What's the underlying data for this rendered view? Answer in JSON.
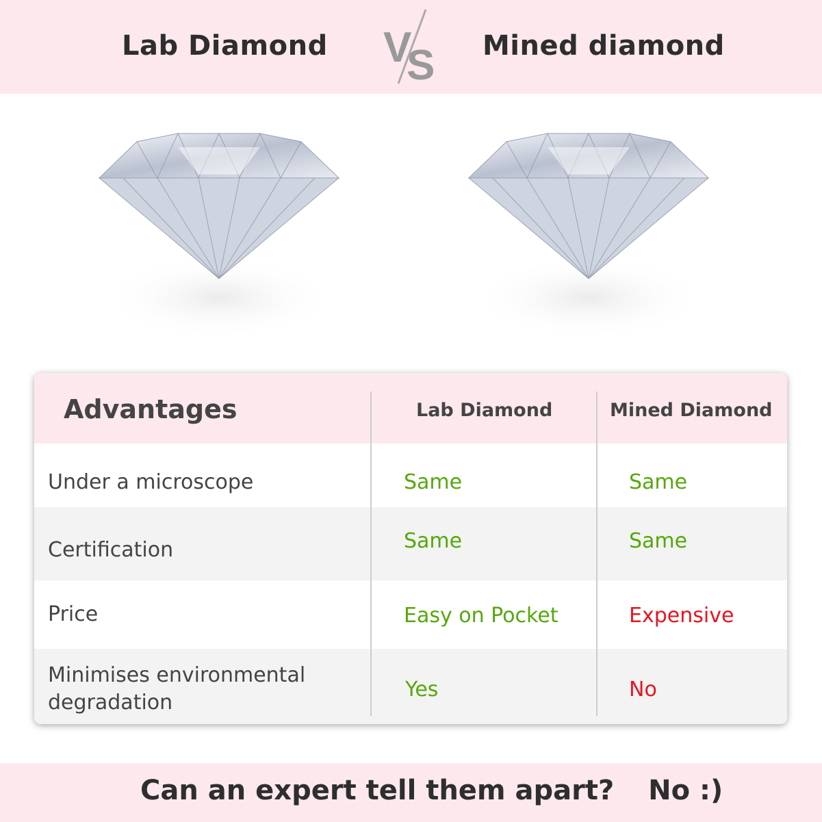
{
  "header": {
    "left_title": "Lab Diamond",
    "vs_logo": "VS",
    "right_title": "Mined diamond"
  },
  "images": {
    "left": "diamond-image",
    "right": "diamond-image"
  },
  "table": {
    "headers": [
      "Advantages",
      "Lab Diamond",
      "Mined Diamond"
    ],
    "rows": [
      {
        "label": "Under a microscope",
        "lab": "Same",
        "mined": "Same"
      },
      {
        "label": "Certification",
        "lab": "Same",
        "mined": "Same"
      },
      {
        "label": "Price",
        "lab": "Easy on Pocket",
        "mined": "Expensive"
      },
      {
        "label": "Minimises environmental degradation",
        "lab": "Yes",
        "mined": "No"
      }
    ]
  },
  "footer": {
    "question": "Can an expert tell them apart?",
    "answer": "No :)"
  },
  "colors": {
    "band": "#fde9ed",
    "positive": "#56a80b",
    "negative": "#e8141f"
  }
}
